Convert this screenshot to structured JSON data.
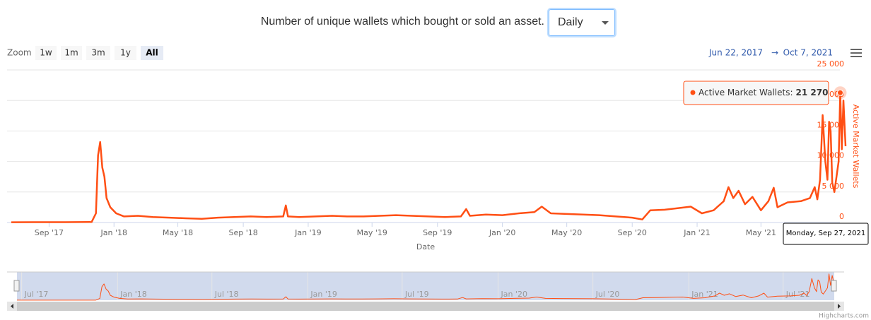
{
  "header": {
    "title": "Number of unique wallets which bought or sold an asset.",
    "interval": "Daily"
  },
  "chart_data": {
    "type": "line",
    "x_label": "Date",
    "y_label": "Active Market Wallets",
    "x": [
      "2017-06-22",
      "2017-08-01",
      "2017-10-01",
      "2017-11-20",
      "2017-11-28",
      "2017-12-02",
      "2017-12-06",
      "2017-12-10",
      "2017-12-14",
      "2017-12-18",
      "2017-12-25",
      "2018-01-05",
      "2018-01-20",
      "2018-02-15",
      "2018-03-15",
      "2018-04-15",
      "2018-05-15",
      "2018-06-15",
      "2018-07-15",
      "2018-08-15",
      "2018-09-15",
      "2018-10-15",
      "2018-11-15",
      "2018-11-20",
      "2018-11-24",
      "2018-12-15",
      "2019-01-15",
      "2019-02-15",
      "2019-03-15",
      "2019-04-15",
      "2019-05-15",
      "2019-06-15",
      "2019-07-15",
      "2019-08-15",
      "2019-09-15",
      "2019-10-15",
      "2019-10-25",
      "2019-11-01",
      "2019-12-01",
      "2020-01-01",
      "2020-02-01",
      "2020-03-01",
      "2020-03-15",
      "2020-04-01",
      "2020-05-01",
      "2020-06-01",
      "2020-07-01",
      "2020-08-01",
      "2020-09-01",
      "2020-09-20",
      "2020-10-05",
      "2020-11-01",
      "2020-12-01",
      "2020-12-20",
      "2021-01-10",
      "2021-02-01",
      "2021-02-20",
      "2021-03-01",
      "2021-03-10",
      "2021-03-20",
      "2021-04-01",
      "2021-04-15",
      "2021-05-01",
      "2021-05-15",
      "2021-05-25",
      "2021-06-01",
      "2021-06-20",
      "2021-07-15",
      "2021-08-01",
      "2021-08-10",
      "2021-08-15",
      "2021-08-20",
      "2021-08-25",
      "2021-08-30",
      "2021-09-03",
      "2021-09-06",
      "2021-09-09",
      "2021-09-12",
      "2021-09-16",
      "2021-09-20",
      "2021-09-24",
      "2021-09-27",
      "2021-09-30",
      "2021-10-03",
      "2021-10-07"
    ],
    "series": [
      {
        "name": "Active Market Wallets",
        "color": "#ff4f14",
        "values": [
          50,
          60,
          60,
          80,
          1500,
          11000,
          13200,
          9000,
          7500,
          4000,
          2500,
          1500,
          1000,
          1100,
          900,
          800,
          700,
          600,
          800,
          900,
          1000,
          900,
          1000,
          2800,
          1000,
          900,
          1000,
          1100,
          1000,
          1000,
          1100,
          1200,
          1100,
          1000,
          900,
          1000,
          2200,
          1100,
          1300,
          1200,
          1500,
          1700,
          2600,
          1500,
          1400,
          1300,
          1200,
          1000,
          800,
          500,
          2000,
          2100,
          2400,
          2600,
          1500,
          2000,
          3500,
          5800,
          4000,
          5200,
          3000,
          4200,
          2000,
          3500,
          5700,
          2500,
          3300,
          3500,
          4000,
          5800,
          3800,
          7000,
          17600,
          10000,
          7000,
          16500,
          15000,
          6500,
          5000,
          7500,
          10000,
          21270,
          12000,
          20000,
          12500
        ]
      }
    ],
    "xlim": [
      "2017-06-22",
      "2021-10-07"
    ],
    "xticks": [
      {
        "value": "2017-09-01",
        "label": "Sep '17"
      },
      {
        "value": "2018-01-01",
        "label": "Jan '18"
      },
      {
        "value": "2018-05-01",
        "label": "May '18"
      },
      {
        "value": "2018-09-01",
        "label": "Sep '18"
      },
      {
        "value": "2019-01-01",
        "label": "Jan '19"
      },
      {
        "value": "2019-05-01",
        "label": "May '19"
      },
      {
        "value": "2019-09-01",
        "label": "Sep '19"
      },
      {
        "value": "2020-01-01",
        "label": "Jan '20"
      },
      {
        "value": "2020-05-01",
        "label": "May '20"
      },
      {
        "value": "2020-09-01",
        "label": "Sep '20"
      },
      {
        "value": "2021-01-01",
        "label": "Jan '21"
      },
      {
        "value": "2021-05-01",
        "label": "May '21"
      }
    ],
    "ylim": [
      0,
      25000
    ],
    "yticks": [
      0,
      {
        "value": 5000,
        "label": "5 000"
      },
      {
        "value": 10000,
        "label": "10 000"
      },
      {
        "value": 15000,
        "label": "15 000"
      },
      {
        "value": 20000,
        "label": "20 000"
      },
      {
        "value": 25000,
        "label": "25 000"
      }
    ],
    "grid": true,
    "range_selector": {
      "zoom_label": "Zoom",
      "buttons": [
        "1w",
        "1m",
        "3m",
        "1y",
        "All"
      ],
      "selected": 4,
      "from": "Jun 22, 2017",
      "separator": "→",
      "to": "Oct 7, 2021"
    },
    "tooltip": {
      "series": "Active Market Wallets:",
      "x": "2021-09-27",
      "value": 21270,
      "value_label": "21 270",
      "date_label": "Monday, Sep 27, 2021"
    },
    "navigator": {
      "xticks": [
        {
          "value": "2017-07-01",
          "label": "Jul '17"
        },
        {
          "value": "2018-01-01",
          "label": "Jan '18"
        },
        {
          "value": "2018-07-01",
          "label": "Jul '18"
        },
        {
          "value": "2019-01-01",
          "label": "Jan '19"
        },
        {
          "value": "2019-07-01",
          "label": "Jul '19"
        },
        {
          "value": "2020-01-01",
          "label": "Jan '20"
        },
        {
          "value": "2020-07-01",
          "label": "Jul '20"
        },
        {
          "value": "2021-01-01",
          "label": "Jan '21"
        },
        {
          "value": "2021-07-01",
          "label": "Jul '21"
        }
      ]
    },
    "credits": "Highcharts.com"
  }
}
